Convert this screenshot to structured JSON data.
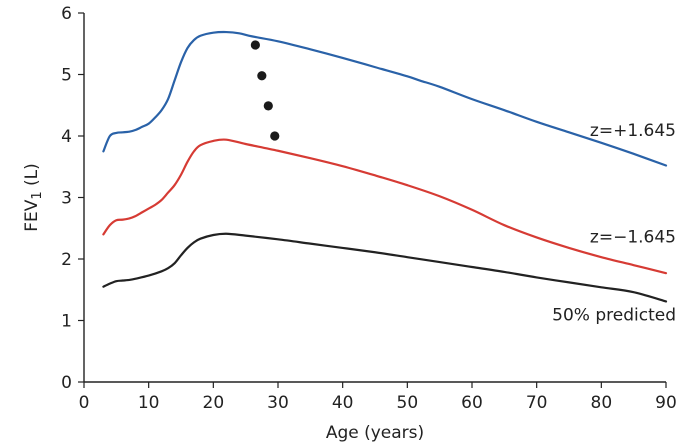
{
  "chart_data": {
    "type": "line",
    "title": "",
    "xlabel": "Age (years)",
    "ylabel_main": "FEV",
    "ylabel_sub": "1",
    "ylabel_tail": " (L)",
    "xlim": [
      0,
      90
    ],
    "ylim": [
      0,
      6
    ],
    "xticks": [
      0,
      10,
      20,
      30,
      40,
      50,
      60,
      70,
      80,
      90
    ],
    "yticks": [
      0,
      1,
      2,
      3,
      4,
      5,
      6
    ],
    "grid": false,
    "series": [
      {
        "name": "z=+1.645",
        "color": "#2a62a8",
        "points": [
          [
            3,
            3.75
          ],
          [
            4,
            4.0
          ],
          [
            5,
            4.05
          ],
          [
            6,
            4.06
          ],
          [
            7,
            4.07
          ],
          [
            8,
            4.1
          ],
          [
            9,
            4.15
          ],
          [
            10,
            4.2
          ],
          [
            11,
            4.3
          ],
          [
            12,
            4.42
          ],
          [
            13,
            4.6
          ],
          [
            14,
            4.9
          ],
          [
            15,
            5.2
          ],
          [
            16,
            5.43
          ],
          [
            17,
            5.56
          ],
          [
            18,
            5.63
          ],
          [
            20,
            5.68
          ],
          [
            22,
            5.69
          ],
          [
            24,
            5.67
          ],
          [
            26,
            5.62
          ],
          [
            30,
            5.54
          ],
          [
            35,
            5.41
          ],
          [
            40,
            5.27
          ],
          [
            45,
            5.12
          ],
          [
            50,
            4.97
          ],
          [
            52,
            4.9
          ],
          [
            55,
            4.8
          ],
          [
            60,
            4.6
          ],
          [
            65,
            4.42
          ],
          [
            70,
            4.23
          ],
          [
            75,
            4.06
          ],
          [
            80,
            3.89
          ],
          [
            85,
            3.71
          ],
          [
            90,
            3.52
          ]
        ]
      },
      {
        "name": "z=−1.645",
        "color": "#d63b34",
        "points": [
          [
            3,
            2.4
          ],
          [
            4,
            2.55
          ],
          [
            5,
            2.63
          ],
          [
            6,
            2.64
          ],
          [
            7,
            2.66
          ],
          [
            8,
            2.7
          ],
          [
            9,
            2.76
          ],
          [
            10,
            2.82
          ],
          [
            11,
            2.88
          ],
          [
            12,
            2.96
          ],
          [
            13,
            3.08
          ],
          [
            14,
            3.2
          ],
          [
            15,
            3.37
          ],
          [
            16,
            3.58
          ],
          [
            17,
            3.75
          ],
          [
            18,
            3.85
          ],
          [
            20,
            3.92
          ],
          [
            22,
            3.94
          ],
          [
            25,
            3.87
          ],
          [
            30,
            3.76
          ],
          [
            35,
            3.64
          ],
          [
            40,
            3.51
          ],
          [
            45,
            3.36
          ],
          [
            50,
            3.2
          ],
          [
            55,
            3.02
          ],
          [
            60,
            2.8
          ],
          [
            65,
            2.55
          ],
          [
            70,
            2.35
          ],
          [
            75,
            2.18
          ],
          [
            80,
            2.03
          ],
          [
            85,
            1.9
          ],
          [
            90,
            1.77
          ]
        ]
      },
      {
        "name": "50% predicted",
        "color": "#222222",
        "points": [
          [
            3,
            1.55
          ],
          [
            4,
            1.6
          ],
          [
            5,
            1.64
          ],
          [
            6,
            1.65
          ],
          [
            7,
            1.66
          ],
          [
            8,
            1.68
          ],
          [
            10,
            1.73
          ],
          [
            12,
            1.8
          ],
          [
            13,
            1.85
          ],
          [
            14,
            1.93
          ],
          [
            15,
            2.06
          ],
          [
            16,
            2.18
          ],
          [
            17,
            2.27
          ],
          [
            18,
            2.33
          ],
          [
            20,
            2.39
          ],
          [
            22,
            2.41
          ],
          [
            25,
            2.38
          ],
          [
            30,
            2.32
          ],
          [
            35,
            2.25
          ],
          [
            40,
            2.18
          ],
          [
            45,
            2.11
          ],
          [
            50,
            2.03
          ],
          [
            55,
            1.95
          ],
          [
            60,
            1.87
          ],
          [
            65,
            1.79
          ],
          [
            70,
            1.7
          ],
          [
            75,
            1.62
          ],
          [
            80,
            1.54
          ],
          [
            85,
            1.46
          ],
          [
            90,
            1.31
          ]
        ]
      }
    ],
    "markers": [
      {
        "x": 26.5,
        "y": 5.48
      },
      {
        "x": 27.5,
        "y": 4.98
      },
      {
        "x": 28.5,
        "y": 4.49
      },
      {
        "x": 29.5,
        "y": 4.0
      }
    ],
    "series_labels": [
      {
        "text": "z=+1.645",
        "anchor_x": 90,
        "anchor_y": 4.0
      },
      {
        "text": "z=−1.645",
        "anchor_x": 90,
        "anchor_y": 2.27
      },
      {
        "text": "50% predicted",
        "anchor_x": 90,
        "anchor_y": 1.0
      }
    ]
  }
}
